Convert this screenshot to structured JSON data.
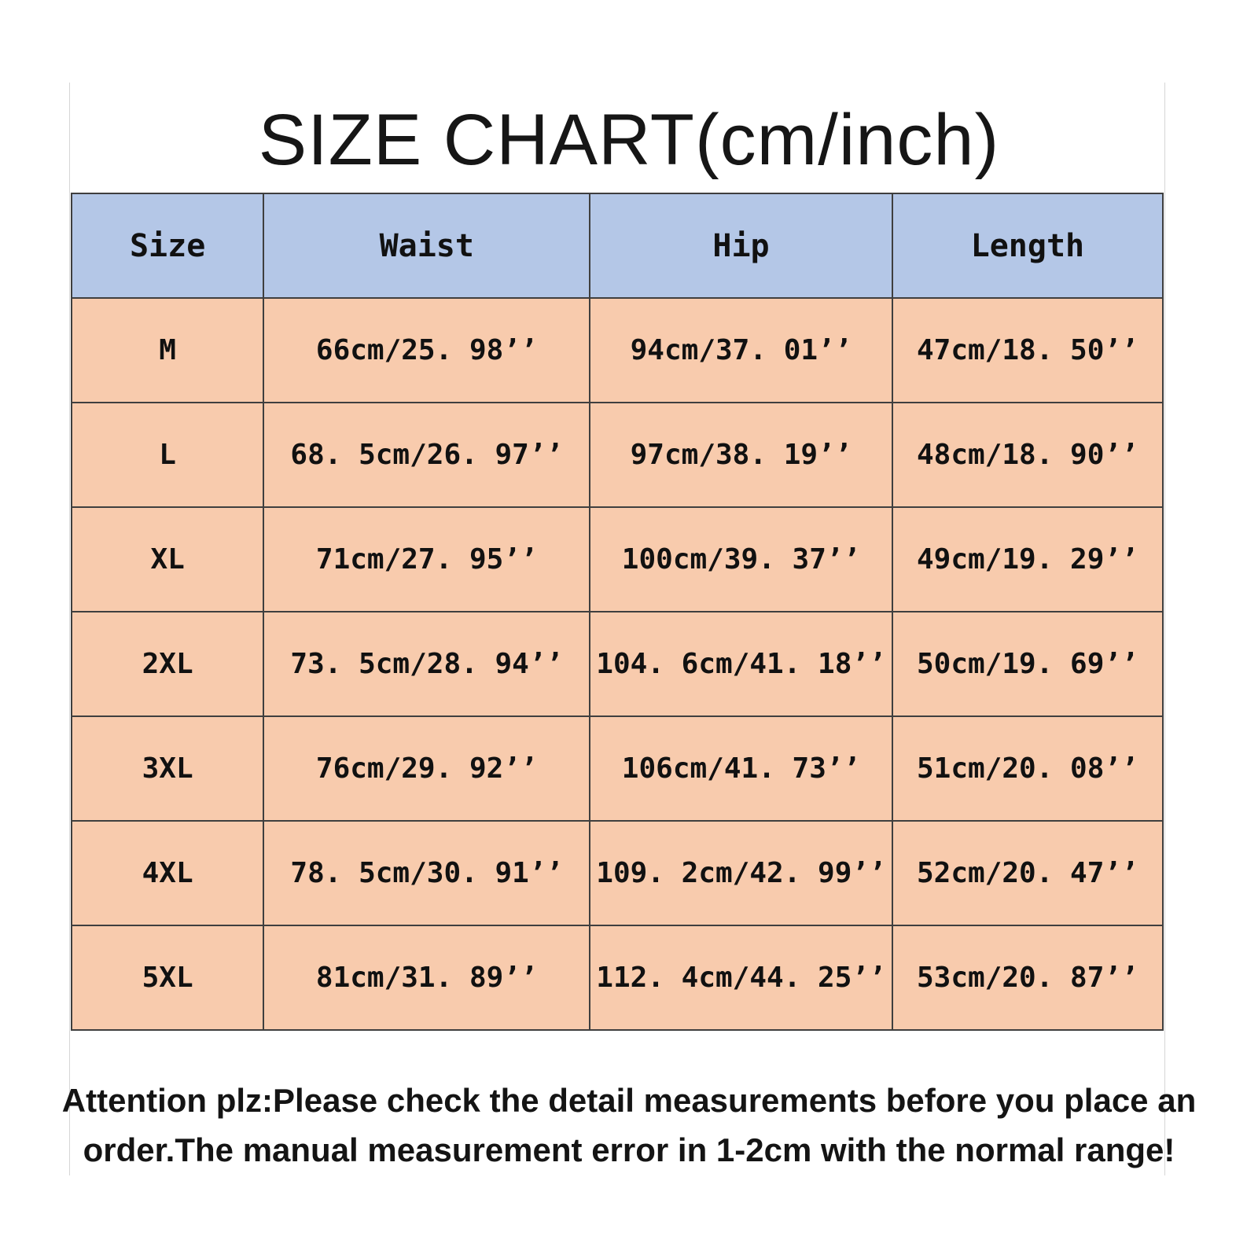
{
  "page": {
    "title": "SIZE CHART(cm/inch)"
  },
  "colors": {
    "header_bg": "#b4c7e7",
    "row_bg": "#f8cbad",
    "border": "#3f3f3f"
  },
  "chart_data": {
    "type": "table",
    "title": "SIZE CHART(cm/inch)",
    "columns": [
      "Size",
      "Waist",
      "Hip",
      "Length"
    ],
    "rows": [
      [
        "M",
        "66cm/25. 98’’",
        "94cm/37. 01’’",
        "47cm/18. 50’’"
      ],
      [
        "L",
        "68. 5cm/26. 97’’",
        "97cm/38. 19’’",
        "48cm/18. 90’’"
      ],
      [
        "XL",
        "71cm/27. 95’’",
        "100cm/39. 37’’",
        "49cm/19. 29’’"
      ],
      [
        "2XL",
        "73. 5cm/28. 94’’",
        "104. 6cm/41. 18’’",
        "50cm/19. 69’’"
      ],
      [
        "3XL",
        "76cm/29. 92’’",
        "106cm/41. 73’’",
        "51cm/20. 08’’"
      ],
      [
        "4XL",
        "78. 5cm/30. 91’’",
        "109. 2cm/42. 99’’",
        "52cm/20. 47’’"
      ],
      [
        "5XL",
        "81cm/31. 89’’",
        "112. 4cm/44. 25’’",
        "53cm/20. 87’’"
      ]
    ]
  },
  "note": {
    "line1": "Attention plz:Please check the detail measurements before you place an",
    "line2": "order.The manual measurement error in 1-2cm with the normal range!"
  }
}
